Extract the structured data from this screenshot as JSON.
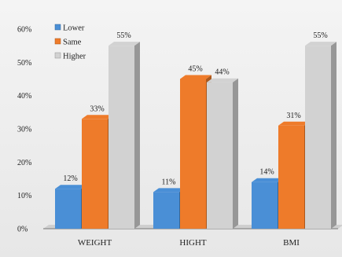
{
  "chart_data": {
    "type": "bar",
    "title": "",
    "xlabel": "",
    "ylabel": "",
    "categories": [
      "WEIGHT",
      "HIGHT",
      "BMI"
    ],
    "series": [
      {
        "name": "Lower",
        "values": [
          12,
          11,
          14
        ],
        "labels": [
          "12%",
          "11%",
          "14%"
        ],
        "color": "#4a8fd6"
      },
      {
        "name": "Same",
        "values": [
          33,
          45,
          31
        ],
        "labels": [
          "33%",
          "45%",
          "31%"
        ],
        "color": "#ee7b2a"
      },
      {
        "name": "Higher",
        "values": [
          55,
          44,
          55
        ],
        "labels": [
          "55%",
          "44%",
          "55%"
        ],
        "color": "#d2d2d2"
      }
    ],
    "ylim": [
      0,
      60
    ],
    "yticks": [
      0,
      10,
      20,
      30,
      40,
      50,
      60
    ],
    "ytick_labels": [
      "0%",
      "10%",
      "20%",
      "30%",
      "40%",
      "50%",
      "60%"
    ],
    "style": "3d",
    "grid": false,
    "legend_position": "top-left"
  }
}
